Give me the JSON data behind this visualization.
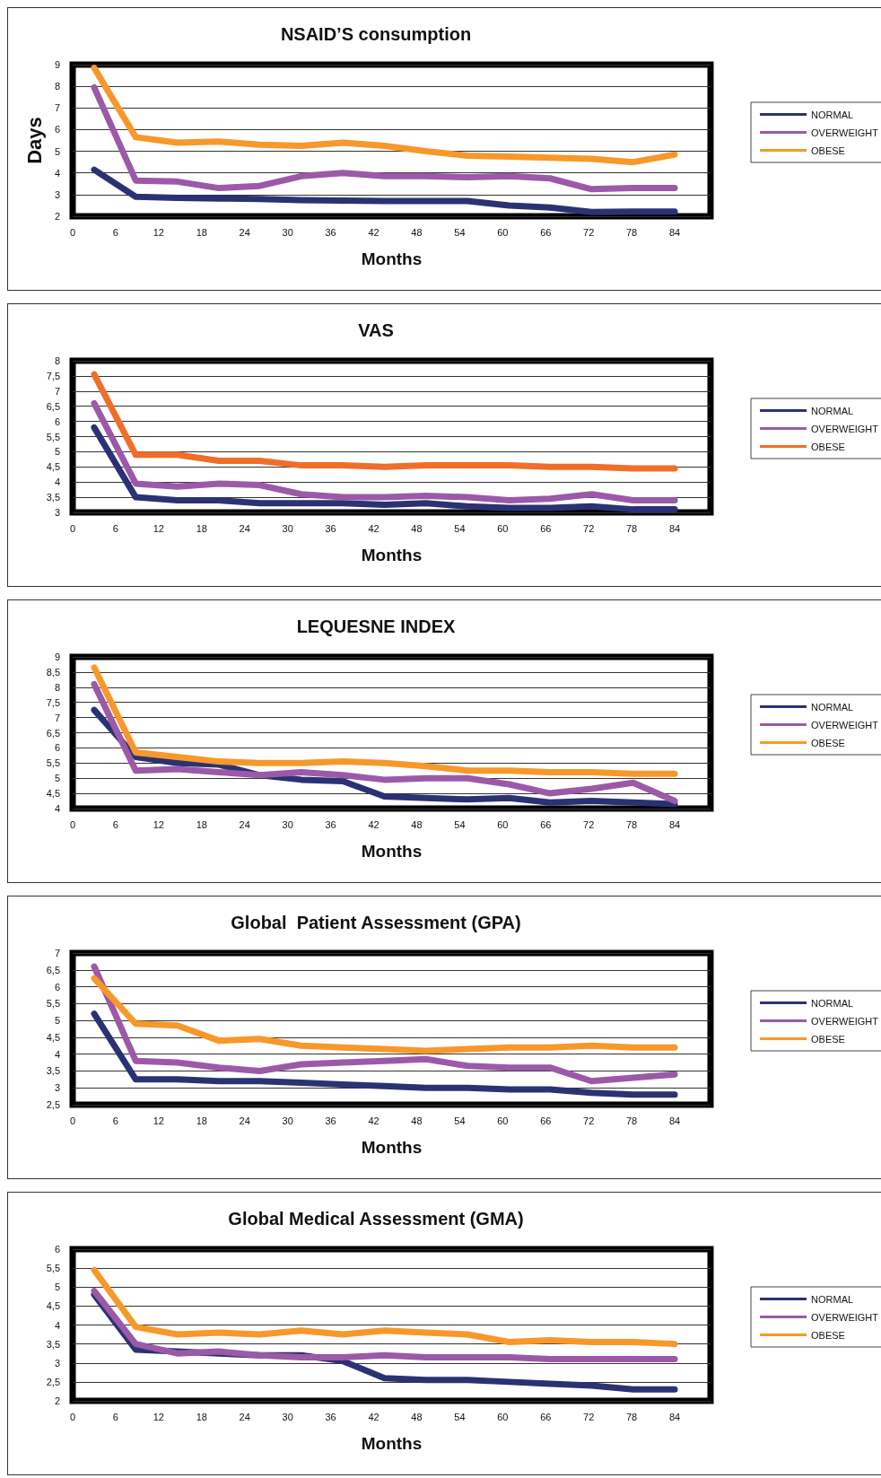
{
  "chart_data": [
    {
      "type": "line",
      "title": "NSAID’S consumption",
      "xlabel": "Months",
      "ylabel": "Days",
      "x": [
        3,
        8.8,
        14.6,
        20.4,
        26.1,
        31.9,
        37.7,
        43.5,
        49.3,
        55.1,
        60.9,
        66.6,
        72.4,
        78.2,
        84
      ],
      "xlim": [
        0,
        89
      ],
      "xticks": [
        0,
        6,
        12,
        18,
        24,
        30,
        36,
        42,
        48,
        54,
        60,
        66,
        72,
        78,
        84
      ],
      "ylim": [
        2,
        9
      ],
      "yticks": [
        2,
        3,
        4,
        5,
        6,
        7,
        8,
        9
      ],
      "grid": "y",
      "legend": "right",
      "marker": "none",
      "line_style": "solid",
      "series": [
        {
          "name": "NORMAL",
          "color": "#2b3273",
          "values": [
            4.15,
            2.9,
            2.85,
            2.82,
            2.8,
            2.75,
            2.72,
            2.7,
            2.7,
            2.7,
            2.5,
            2.4,
            2.2,
            2.22,
            2.22
          ]
        },
        {
          "name": "OVERWEIGHT",
          "color": "#9b59a8",
          "values": [
            7.95,
            3.65,
            3.6,
            3.3,
            3.4,
            3.85,
            4.0,
            3.85,
            3.85,
            3.8,
            3.85,
            3.75,
            3.25,
            3.3,
            3.3
          ]
        },
        {
          "name": "OBESE",
          "color": "#f7982a",
          "values": [
            8.85,
            5.65,
            5.4,
            5.45,
            5.3,
            5.25,
            5.4,
            5.25,
            5.0,
            4.8,
            4.75,
            4.7,
            4.65,
            4.5,
            4.85
          ]
        }
      ]
    },
    {
      "type": "line",
      "title": "VAS",
      "xlabel": "Months",
      "x": [
        3,
        8.8,
        14.6,
        20.4,
        26.1,
        31.9,
        37.7,
        43.5,
        49.3,
        55.1,
        60.9,
        66.6,
        72.4,
        78.2,
        84
      ],
      "xlim": [
        0,
        89
      ],
      "xticks": [
        0,
        6,
        12,
        18,
        24,
        30,
        36,
        42,
        48,
        54,
        60,
        66,
        72,
        78,
        84
      ],
      "ylim": [
        3,
        8
      ],
      "yticks": [
        3,
        {
          "value": 3.5,
          "label": "3,5"
        },
        4,
        {
          "value": 4.5,
          "label": "4,5"
        },
        5,
        {
          "value": 5.5,
          "label": "5,5"
        },
        6,
        {
          "value": 6.5,
          "label": "6,5"
        },
        7,
        {
          "value": 7.5,
          "label": "7,5"
        },
        8
      ],
      "grid": "y",
      "legend": "right",
      "marker": "none",
      "line_style": "solid",
      "series": [
        {
          "name": "NORMAL",
          "color": "#2b3273",
          "values": [
            5.8,
            3.5,
            3.4,
            3.4,
            3.3,
            3.3,
            3.3,
            3.25,
            3.3,
            3.2,
            3.15,
            3.15,
            3.2,
            3.1,
            3.1
          ]
        },
        {
          "name": "OVERWEIGHT",
          "color": "#9b59a8",
          "values": [
            6.6,
            3.95,
            3.85,
            3.95,
            3.9,
            3.6,
            3.5,
            3.5,
            3.55,
            3.5,
            3.4,
            3.45,
            3.6,
            3.4,
            3.4
          ]
        },
        {
          "name": "OBESE",
          "color": "#f06e2a",
          "values": [
            7.55,
            4.9,
            4.9,
            4.7,
            4.7,
            4.55,
            4.55,
            4.5,
            4.55,
            4.55,
            4.55,
            4.5,
            4.5,
            4.45,
            4.45
          ]
        }
      ]
    },
    {
      "type": "line",
      "title": "LEQUESNE INDEX",
      "xlabel": "Months",
      "x": [
        3,
        8.8,
        14.6,
        20.4,
        26.1,
        31.9,
        37.7,
        43.5,
        49.3,
        55.1,
        60.9,
        66.6,
        72.4,
        78.2,
        84
      ],
      "xlim": [
        0,
        89
      ],
      "xticks": [
        0,
        6,
        12,
        18,
        24,
        30,
        36,
        42,
        48,
        54,
        60,
        66,
        72,
        78,
        84
      ],
      "ylim": [
        4,
        9
      ],
      "yticks": [
        4,
        {
          "value": 4.5,
          "label": "4,5"
        },
        5,
        {
          "value": 5.5,
          "label": "5,5"
        },
        6,
        {
          "value": 6.5,
          "label": "6,5"
        },
        7,
        {
          "value": 7.5,
          "label": "7,5"
        },
        8,
        {
          "value": 8.5,
          "label": "8,5"
        },
        9
      ],
      "grid": "y",
      "legend": "right",
      "marker": "none",
      "line_style": "solid",
      "series": [
        {
          "name": "NORMAL",
          "color": "#2b3273",
          "values": [
            7.25,
            5.7,
            5.5,
            5.45,
            5.1,
            4.95,
            4.9,
            4.4,
            4.35,
            4.3,
            4.35,
            4.2,
            4.25,
            4.2,
            4.15
          ]
        },
        {
          "name": "OVERWEIGHT",
          "color": "#9b59a8",
          "values": [
            8.1,
            5.25,
            5.3,
            5.2,
            5.1,
            5.2,
            5.1,
            4.95,
            5.0,
            5.0,
            4.8,
            4.5,
            4.65,
            4.85,
            4.25
          ]
        },
        {
          "name": "OBESE",
          "color": "#f7982a",
          "values": [
            8.65,
            5.85,
            5.7,
            5.55,
            5.5,
            5.5,
            5.55,
            5.5,
            5.4,
            5.25,
            5.25,
            5.2,
            5.2,
            5.15,
            5.15
          ]
        }
      ]
    },
    {
      "type": "line",
      "title": "Global  Patient Assessment (GPA)",
      "xlabel": "Months",
      "x": [
        3,
        8.8,
        14.6,
        20.4,
        26.1,
        31.9,
        37.7,
        43.5,
        49.3,
        55.1,
        60.9,
        66.6,
        72.4,
        78.2,
        84
      ],
      "xlim": [
        0,
        89
      ],
      "xticks": [
        0,
        6,
        12,
        18,
        24,
        30,
        36,
        42,
        48,
        54,
        60,
        66,
        72,
        78,
        84
      ],
      "ylim": [
        2.5,
        7
      ],
      "yticks": [
        {
          "value": 2.5,
          "label": "2,5"
        },
        3,
        {
          "value": 3.5,
          "label": "3,5"
        },
        4,
        {
          "value": 4.5,
          "label": "4,5"
        },
        5,
        {
          "value": 5.5,
          "label": "5,5"
        },
        6,
        {
          "value": 6.5,
          "label": "6,5"
        },
        7
      ],
      "grid": "y",
      "legend": "right",
      "marker": "none",
      "line_style": "solid",
      "series": [
        {
          "name": "NORMAL",
          "color": "#2b3273",
          "values": [
            5.2,
            3.25,
            3.25,
            3.2,
            3.2,
            3.15,
            3.1,
            3.05,
            3.0,
            3.0,
            2.95,
            2.95,
            2.85,
            2.8,
            2.8
          ]
        },
        {
          "name": "OVERWEIGHT",
          "color": "#9b59a8",
          "values": [
            6.6,
            3.8,
            3.75,
            3.6,
            3.5,
            3.7,
            3.75,
            3.8,
            3.85,
            3.65,
            3.6,
            3.6,
            3.2,
            3.3,
            3.4
          ]
        },
        {
          "name": "OBESE",
          "color": "#f7982a",
          "values": [
            6.25,
            4.9,
            4.85,
            4.4,
            4.45,
            4.25,
            4.2,
            4.15,
            4.1,
            4.15,
            4.2,
            4.2,
            4.25,
            4.2,
            4.2
          ]
        }
      ]
    },
    {
      "type": "line",
      "title": "Global Medical Assessment (GMA)",
      "xlabel": "Months",
      "x": [
        3,
        8.8,
        14.6,
        20.4,
        26.1,
        31.9,
        37.7,
        43.5,
        49.3,
        55.1,
        60.9,
        66.6,
        72.4,
        78.2,
        84
      ],
      "xlim": [
        0,
        89
      ],
      "xticks": [
        0,
        6,
        12,
        18,
        24,
        30,
        36,
        42,
        48,
        54,
        60,
        66,
        72,
        78,
        84
      ],
      "ylim": [
        2,
        6
      ],
      "yticks": [
        2,
        {
          "value": 2.5,
          "label": "2,5"
        },
        3,
        {
          "value": 3.5,
          "label": "3,5"
        },
        4,
        {
          "value": 4.5,
          "label": "4,5"
        },
        5,
        {
          "value": 5.5,
          "label": "5,5"
        },
        6
      ],
      "grid": "y",
      "legend": "right",
      "marker": "none",
      "line_style": "solid",
      "series": [
        {
          "name": "NORMAL",
          "color": "#2b3273",
          "values": [
            4.8,
            3.35,
            3.3,
            3.25,
            3.2,
            3.2,
            3.05,
            2.6,
            2.55,
            2.55,
            2.5,
            2.45,
            2.4,
            2.3,
            2.3
          ]
        },
        {
          "name": "OVERWEIGHT",
          "color": "#9b59a8",
          "values": [
            4.9,
            3.5,
            3.25,
            3.3,
            3.2,
            3.15,
            3.15,
            3.2,
            3.15,
            3.15,
            3.15,
            3.1,
            3.1,
            3.1,
            3.1
          ]
        },
        {
          "name": "OBESE",
          "color": "#f7982a",
          "values": [
            5.45,
            3.95,
            3.75,
            3.8,
            3.75,
            3.85,
            3.75,
            3.85,
            3.8,
            3.75,
            3.55,
            3.6,
            3.55,
            3.55,
            3.5
          ]
        }
      ]
    }
  ]
}
